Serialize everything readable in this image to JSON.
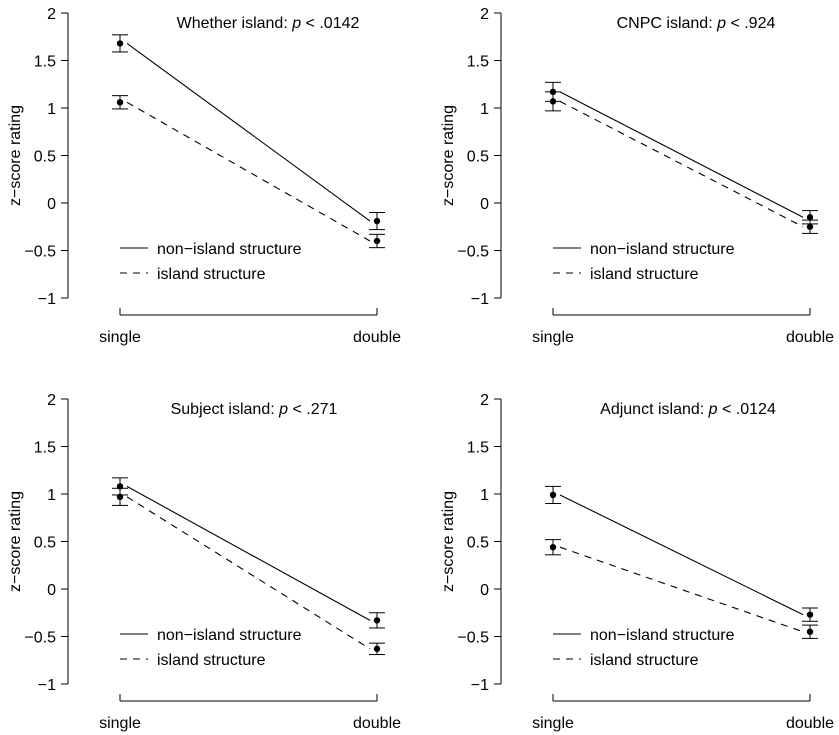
{
  "chart_data": [
    {
      "type": "line",
      "title_prefix": "Whether island: ",
      "title_p": "p",
      "title_suffix": " < .0142",
      "categories": [
        "single",
        "double"
      ],
      "ylabel": "z−score rating",
      "ylim": [
        -1,
        2
      ],
      "yticks": [
        "−1",
        "−0.5",
        "0",
        "0.5",
        "1",
        "1.5",
        "2"
      ],
      "grid": false,
      "legend_position": "bottom-left",
      "series": [
        {
          "name": "non−island structure",
          "line_style": "solid",
          "values": [
            1.68,
            -0.19
          ],
          "errors": [
            0.09,
            0.09
          ]
        },
        {
          "name": "island structure",
          "line_style": "dashed",
          "values": [
            1.06,
            -0.4
          ],
          "errors": [
            0.07,
            0.07
          ]
        }
      ]
    },
    {
      "type": "line",
      "title_prefix": "CNPC island: ",
      "title_p": "p",
      "title_suffix": " < .924",
      "categories": [
        "single",
        "double"
      ],
      "ylabel": "z−score rating",
      "ylim": [
        -1,
        2
      ],
      "yticks": [
        "−1",
        "−0.5",
        "0",
        "0.5",
        "1",
        "1.5",
        "2"
      ],
      "grid": false,
      "legend_position": "bottom-left",
      "series": [
        {
          "name": "non−island structure",
          "line_style": "solid",
          "values": [
            1.17,
            -0.15
          ],
          "errors": [
            0.1,
            0.07
          ]
        },
        {
          "name": "island structure",
          "line_style": "dashed",
          "values": [
            1.07,
            -0.25
          ],
          "errors": [
            0.1,
            0.07
          ]
        }
      ]
    },
    {
      "type": "line",
      "title_prefix": "Subject island: ",
      "title_p": "p",
      "title_suffix": " < .271",
      "categories": [
        "single",
        "double"
      ],
      "ylabel": "z−score rating",
      "ylim": [
        -1,
        2
      ],
      "yticks": [
        "−1",
        "−0.5",
        "0",
        "0.5",
        "1",
        "1.5",
        "2"
      ],
      "grid": false,
      "legend_position": "bottom-left",
      "series": [
        {
          "name": "non−island structure",
          "line_style": "solid",
          "values": [
            1.08,
            -0.33
          ],
          "errors": [
            0.09,
            0.08
          ]
        },
        {
          "name": "island structure",
          "line_style": "dashed",
          "values": [
            0.97,
            -0.63
          ],
          "errors": [
            0.09,
            0.06
          ]
        }
      ]
    },
    {
      "type": "line",
      "title_prefix": "Adjunct island: ",
      "title_p": "p",
      "title_suffix": " < .0124",
      "categories": [
        "single",
        "double"
      ],
      "ylabel": "z−score rating",
      "ylim": [
        -1,
        2
      ],
      "yticks": [
        "−1",
        "−0.5",
        "0",
        "0.5",
        "1",
        "1.5",
        "2"
      ],
      "grid": false,
      "legend_position": "bottom-left",
      "series": [
        {
          "name": "non−island structure",
          "line_style": "solid",
          "values": [
            0.99,
            -0.27
          ],
          "errors": [
            0.09,
            0.07
          ]
        },
        {
          "name": "island structure",
          "line_style": "dashed",
          "values": [
            0.44,
            -0.45
          ],
          "errors": [
            0.08,
            0.07
          ]
        }
      ]
    }
  ]
}
